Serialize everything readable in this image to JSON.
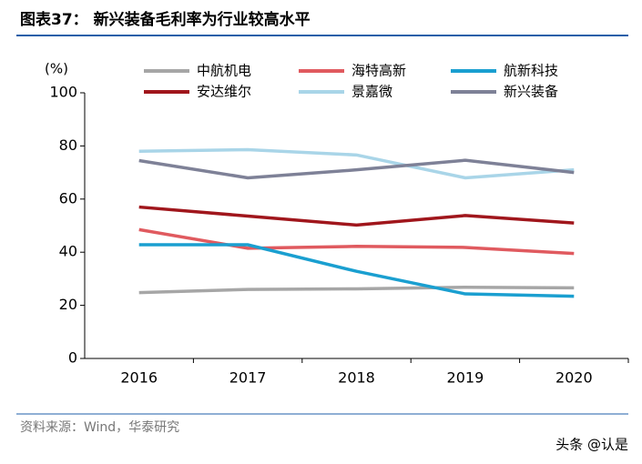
{
  "chart_data": {
    "type": "line",
    "title": "图表37：  新兴装备毛利率为行业较高水平",
    "y_label": "(%)",
    "categories": [
      "2016",
      "2017",
      "2018",
      "2019",
      "2020"
    ],
    "series": [
      {
        "name": "中航机电",
        "color": "#a6a6a6",
        "values": [
          24.8,
          26.0,
          26.2,
          26.8,
          26.6
        ]
      },
      {
        "name": "海特高新",
        "color": "#e05a5f",
        "values": [
          48.5,
          41.5,
          42.2,
          41.8,
          39.5
        ]
      },
      {
        "name": "航新科技",
        "color": "#1a9fd0",
        "values": [
          42.8,
          42.8,
          32.8,
          24.3,
          23.4
        ]
      },
      {
        "name": "安达维尔",
        "color": "#a0161c",
        "values": [
          57.0,
          53.6,
          50.2,
          53.8,
          51.0
        ]
      },
      {
        "name": "景嘉微",
        "color": "#a9d5e8",
        "values": [
          78.0,
          78.6,
          76.6,
          68.0,
          71.0
        ]
      },
      {
        "name": "新兴装备",
        "color": "#7e8197",
        "values": [
          74.5,
          68.0,
          71.0,
          74.6,
          70.0
        ]
      }
    ],
    "ylim": [
      0,
      100
    ],
    "yticks": [
      0,
      20,
      40,
      60,
      80,
      100
    ],
    "grid": false,
    "legend": "top",
    "source": "资料来源：Wind，华泰研究",
    "watermark": "头条 @认是"
  }
}
